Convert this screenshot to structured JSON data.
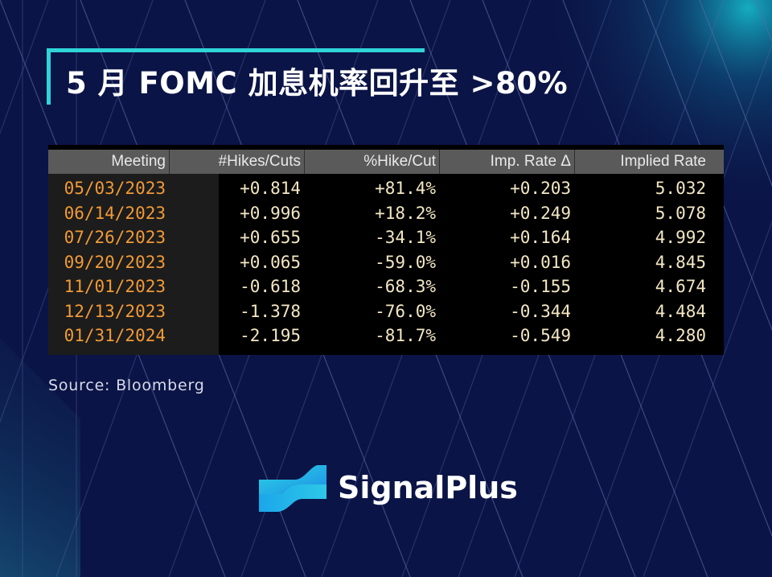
{
  "title": "5 月 FOMC 加息机率回升至 >80%",
  "source": "Source: Bloomberg",
  "brand": {
    "name": "SignalPlus",
    "icon": "signalplus-logo-icon"
  },
  "colors": {
    "background": "#0b1446",
    "accent": "#2fd4d8",
    "meeting_text": "#f29a36",
    "value_text": "#f3e7c3",
    "header_bg": "#5a5a5a"
  },
  "chart_data": {
    "type": "table",
    "columns": [
      "Meeting",
      "#Hikes/Cuts",
      "%Hike/Cut",
      "Imp. Rate Δ",
      "Implied Rate"
    ],
    "rows": [
      [
        "05/03/2023",
        "+0.814",
        "+81.4%",
        "+0.203",
        "5.032"
      ],
      [
        "06/14/2023",
        "+0.996",
        "+18.2%",
        "+0.249",
        "5.078"
      ],
      [
        "07/26/2023",
        "+0.655",
        "-34.1%",
        "+0.164",
        "4.992"
      ],
      [
        "09/20/2023",
        "+0.065",
        "-59.0%",
        "+0.016",
        "4.845"
      ],
      [
        "11/01/2023",
        "-0.618",
        "-68.3%",
        "-0.155",
        "4.674"
      ],
      [
        "12/13/2023",
        "-1.378",
        "-76.0%",
        "-0.344",
        "4.484"
      ],
      [
        "01/31/2024",
        "-2.195",
        "-81.7%",
        "-0.549",
        "4.280"
      ]
    ]
  }
}
